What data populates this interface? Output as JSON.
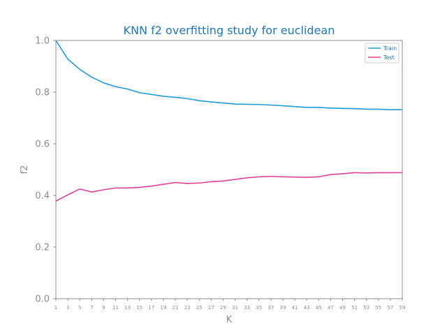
{
  "chart_data": {
    "type": "line",
    "title": "KNN f2 overfitting study for euclidean",
    "xlabel": "K",
    "ylabel": "f2",
    "xlim": [
      1,
      59
    ],
    "ylim": [
      0.0,
      1.0
    ],
    "x_ticks": [
      1,
      3,
      5,
      7,
      9,
      11,
      13,
      15,
      17,
      19,
      21,
      23,
      25,
      27,
      29,
      31,
      33,
      35,
      37,
      39,
      41,
      43,
      45,
      47,
      49,
      51,
      53,
      55,
      57,
      59
    ],
    "y_ticks": [
      0.0,
      0.2,
      0.4,
      0.6,
      0.8,
      1.0
    ],
    "y_tick_labels": [
      "0.0",
      "0.2",
      "0.4",
      "0.6",
      "0.8",
      "1.0"
    ],
    "grid": false,
    "legend_position": "top-right",
    "x": [
      1,
      3,
      5,
      7,
      9,
      11,
      13,
      15,
      17,
      19,
      21,
      23,
      25,
      27,
      29,
      31,
      33,
      35,
      37,
      39,
      41,
      43,
      45,
      47,
      49,
      51,
      53,
      55,
      57,
      59
    ],
    "series": [
      {
        "name": "Train",
        "color": "#1f9bd7",
        "values": [
          1.0,
          0.928,
          0.888,
          0.858,
          0.836,
          0.821,
          0.812,
          0.798,
          0.791,
          0.784,
          0.78,
          0.775,
          0.767,
          0.762,
          0.758,
          0.754,
          0.753,
          0.752,
          0.75,
          0.747,
          0.744,
          0.741,
          0.741,
          0.738,
          0.737,
          0.736,
          0.734,
          0.734,
          0.732,
          0.732
        ]
      },
      {
        "name": "Test",
        "color": "#e0409a",
        "values": [
          0.378,
          0.402,
          0.425,
          0.413,
          0.422,
          0.429,
          0.429,
          0.431,
          0.436,
          0.443,
          0.45,
          0.446,
          0.448,
          0.453,
          0.456,
          0.462,
          0.468,
          0.472,
          0.474,
          0.472,
          0.471,
          0.47,
          0.472,
          0.481,
          0.484,
          0.488,
          0.487,
          0.488,
          0.488,
          0.488
        ]
      }
    ]
  }
}
